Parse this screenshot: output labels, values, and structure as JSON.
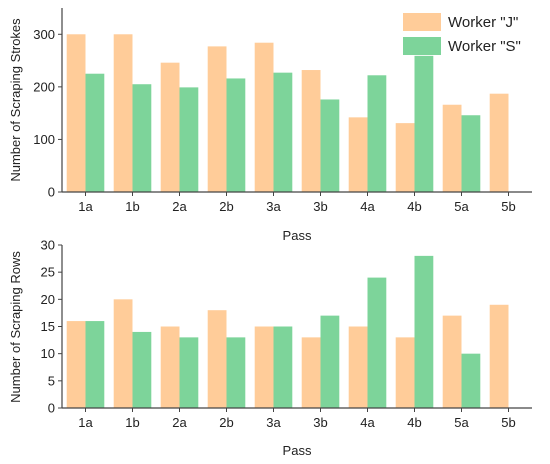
{
  "colors": {
    "worker_j": "#FFCC99",
    "worker_s": "#7DD49A",
    "axis": "#444444"
  },
  "chart_data": [
    {
      "type": "bar",
      "categories": [
        "1a",
        "1b",
        "2a",
        "2b",
        "3a",
        "3b",
        "4a",
        "4b",
        "5a",
        "5b"
      ],
      "series": [
        {
          "name": "Worker \"J\"",
          "values": [
            300,
            300,
            246,
            277,
            284,
            232,
            142,
            131,
            166,
            187
          ]
        },
        {
          "name": "Worker \"S\"",
          "values": [
            225,
            205,
            199,
            216,
            227,
            176,
            222,
            259,
            146,
            null
          ]
        }
      ],
      "xlabel": "Pass",
      "ylabel": "Number of Scraping Strokes",
      "ylim": [
        0,
        350
      ],
      "yticks": [
        0,
        100,
        200,
        300
      ],
      "grid": false,
      "legend": "top-right"
    },
    {
      "type": "bar",
      "categories": [
        "1a",
        "1b",
        "2a",
        "2b",
        "3a",
        "3b",
        "4a",
        "4b",
        "5a",
        "5b"
      ],
      "series": [
        {
          "name": "Worker \"J\"",
          "values": [
            16,
            20,
            15,
            18,
            15,
            13,
            15,
            13,
            17,
            19
          ]
        },
        {
          "name": "Worker \"S\"",
          "values": [
            16,
            14,
            13,
            13,
            15,
            17,
            24,
            28,
            10,
            null
          ]
        }
      ],
      "xlabel": "Pass",
      "ylabel": "Number of Scraping Rows",
      "ylim": [
        0,
        30
      ],
      "yticks": [
        0,
        5,
        10,
        15,
        20,
        25,
        30
      ],
      "grid": false
    }
  ]
}
